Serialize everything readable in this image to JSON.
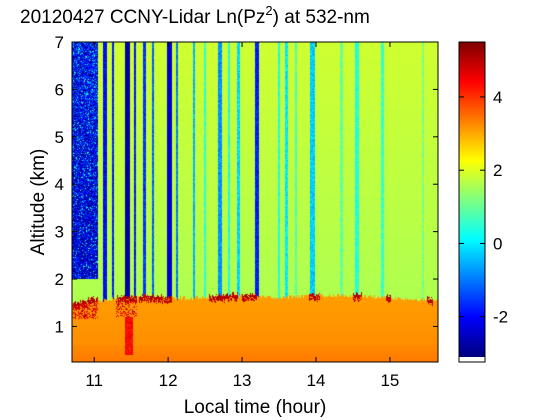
{
  "chart_data": {
    "type": "heatmap",
    "title": "20120427 CCNY-Lidar Ln(Pz",
    "title_superscript": "2",
    "title_suffix": ") at 532-nm",
    "xlabel": "Local time (hour)",
    "ylabel": "Altitude (km)",
    "xlim": [
      10.7,
      15.65
    ],
    "ylim": [
      0.25,
      7.0
    ],
    "x_ticks": [
      {
        "value": 11,
        "label": "11"
      },
      {
        "value": 12,
        "label": "12"
      },
      {
        "value": 13,
        "label": "13"
      },
      {
        "value": 14,
        "label": "14"
      },
      {
        "value": 15,
        "label": "15"
      }
    ],
    "y_ticks": [
      {
        "value": 1,
        "label": "1"
      },
      {
        "value": 2,
        "label": "2"
      },
      {
        "value": 3,
        "label": "3"
      },
      {
        "value": 4,
        "label": "4"
      },
      {
        "value": 5,
        "label": "5"
      },
      {
        "value": 6,
        "label": "6"
      },
      {
        "value": 7,
        "label": "7"
      }
    ],
    "colorbar": {
      "range": [
        -3.1,
        5.5
      ],
      "colormap": "jet",
      "ticks": [
        {
          "value": -2,
          "label": "-2"
        },
        {
          "value": 0,
          "label": "0"
        },
        {
          "value": 2,
          "label": "2"
        },
        {
          "value": 4,
          "label": "4"
        }
      ]
    },
    "field": {
      "free_troposphere_value": 1.6,
      "boundary_layer_value": 3.1,
      "cloud_top_value": 5.3,
      "surface_value": 3.4,
      "pbl_top_km": [
        {
          "x": 10.7,
          "y": 1.45
        },
        {
          "x": 11.0,
          "y": 1.55
        },
        {
          "x": 11.5,
          "y": 1.6
        },
        {
          "x": 12.0,
          "y": 1.6
        },
        {
          "x": 12.5,
          "y": 1.6
        },
        {
          "x": 13.0,
          "y": 1.65
        },
        {
          "x": 13.5,
          "y": 1.6
        },
        {
          "x": 14.0,
          "y": 1.65
        },
        {
          "x": 14.5,
          "y": 1.65
        },
        {
          "x": 15.0,
          "y": 1.6
        },
        {
          "x": 15.65,
          "y": 1.55
        }
      ],
      "cloud_segments": [
        {
          "x0": 10.72,
          "x1": 11.05,
          "y0": 1.15,
          "y1": 1.85
        },
        {
          "x0": 11.3,
          "x1": 11.58,
          "y0": 1.2,
          "y1": 1.75
        },
        {
          "x0": 11.6,
          "x1": 12.05,
          "y0": 1.55,
          "y1": 1.7
        },
        {
          "x0": 12.55,
          "x1": 12.95,
          "y0": 1.55,
          "y1": 1.75
        },
        {
          "x0": 13.0,
          "x1": 13.2,
          "y0": 1.6,
          "y1": 1.75
        },
        {
          "x0": 13.9,
          "x1": 14.05,
          "y0": 1.6,
          "y1": 1.7
        },
        {
          "x0": 14.5,
          "x1": 14.62,
          "y0": 1.62,
          "y1": 1.72
        },
        {
          "x0": 14.95,
          "x1": 15.02,
          "y0": 1.62,
          "y1": 1.75
        },
        {
          "x0": 15.5,
          "x1": 15.58,
          "y0": 1.55,
          "y1": 1.65
        }
      ],
      "shadow_column": {
        "x0": 11.42,
        "x1": 11.52,
        "y0": 0.4,
        "y1": 1.2,
        "value": 4.0
      },
      "noisy_region": {
        "x0": 10.7,
        "x1": 11.05,
        "y0": 2.0,
        "y1": 7.0,
        "value": -2.4
      },
      "dropouts": [
        {
          "x": 11.15,
          "w": 0.05,
          "value": -2.0
        },
        {
          "x": 11.25,
          "w": 0.03,
          "value": -1.8
        },
        {
          "x": 11.45,
          "w": 0.06,
          "value": -2.8
        },
        {
          "x": 11.55,
          "w": 0.03,
          "value": -1.8
        },
        {
          "x": 11.68,
          "w": 0.05,
          "value": -1.6
        },
        {
          "x": 11.8,
          "w": 0.03,
          "value": -1.2
        },
        {
          "x": 12.02,
          "w": 0.06,
          "value": -2.4
        },
        {
          "x": 12.12,
          "w": 0.03,
          "value": -1.0
        },
        {
          "x": 12.35,
          "w": 0.04,
          "value": -0.5
        },
        {
          "x": 12.5,
          "w": 0.03,
          "value": 0.5
        },
        {
          "x": 12.7,
          "w": 0.05,
          "value": -0.8
        },
        {
          "x": 12.82,
          "w": 0.03,
          "value": 0.3
        },
        {
          "x": 12.95,
          "w": 0.04,
          "value": -0.2
        },
        {
          "x": 13.2,
          "w": 0.06,
          "value": -1.8
        },
        {
          "x": 13.5,
          "w": 0.03,
          "value": 0.4
        },
        {
          "x": 13.6,
          "w": 0.04,
          "value": 0.0
        },
        {
          "x": 13.73,
          "w": 0.03,
          "value": 0.8
        },
        {
          "x": 13.95,
          "w": 0.06,
          "value": -0.3
        },
        {
          "x": 14.35,
          "w": 0.04,
          "value": 1.0
        },
        {
          "x": 14.55,
          "w": 0.05,
          "value": 0.4
        },
        {
          "x": 14.9,
          "w": 0.04,
          "value": 0.6
        },
        {
          "x": 15.45,
          "w": 0.03,
          "value": 1.2
        }
      ]
    }
  }
}
